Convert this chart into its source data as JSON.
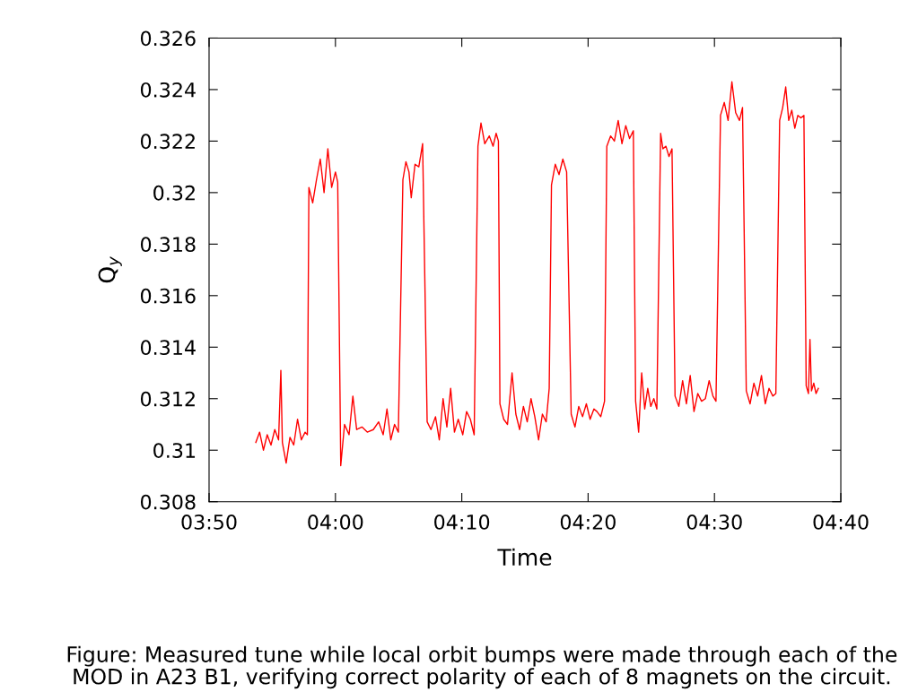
{
  "chart_data": {
    "type": "line",
    "xlabel": "Time",
    "ylabel": "Q$_{y}$",
    "annotations": [
      "Figure: Measured tune while local orbit bumps were made through each of the MOD in A23 B1, verifying correct polarity of each of 8 magnets on the circuit."
    ],
    "x": [
      3.895,
      3.9,
      3.905,
      3.91,
      3.915,
      3.92,
      3.925,
      3.928,
      3.93,
      3.935,
      3.94,
      3.945,
      3.95,
      3.955,
      3.96,
      3.963,
      3.965,
      3.97,
      3.975,
      3.98,
      3.985,
      3.99,
      3.995,
      4.0,
      4.003,
      4.006,
      4.007,
      4.012,
      4.018,
      4.023,
      4.028,
      4.035,
      4.042,
      4.05,
      4.057,
      4.063,
      4.068,
      4.073,
      4.078,
      4.083,
      4.089,
      4.093,
      4.097,
      4.1,
      4.105,
      4.11,
      4.115,
      4.121,
      4.126,
      4.132,
      4.137,
      4.142,
      4.147,
      4.152,
      4.157,
      4.162,
      4.168,
      4.173,
      4.178,
      4.183,
      4.188,
      4.192,
      4.197,
      4.203,
      4.208,
      4.212,
      4.215,
      4.217,
      4.222,
      4.227,
      4.233,
      4.238,
      4.243,
      4.248,
      4.253,
      4.258,
      4.263,
      4.268,
      4.273,
      4.278,
      4.282,
      4.285,
      4.29,
      4.295,
      4.3,
      4.305,
      4.311,
      4.316,
      4.321,
      4.326,
      4.331,
      4.336,
      4.341,
      4.345,
      4.35,
      4.355,
      4.358,
      4.363,
      4.368,
      4.373,
      4.378,
      4.383,
      4.388,
      4.393,
      4.396,
      4.4,
      4.404,
      4.408,
      4.412,
      4.416,
      4.42,
      4.424,
      4.429,
      4.432,
      4.436,
      4.44,
      4.444,
      4.448,
      4.453,
      4.458,
      4.463,
      4.468,
      4.473,
      4.478,
      4.483,
      4.488,
      4.493,
      4.498,
      4.502,
      4.508,
      4.513,
      4.518,
      4.523,
      4.528,
      4.533,
      4.537,
      4.542,
      4.547,
      4.552,
      4.557,
      4.562,
      4.567,
      4.572,
      4.577,
      4.581,
      4.586,
      4.59,
      4.594,
      4.598,
      4.602,
      4.606,
      4.61,
      4.614,
      4.618,
      4.621,
      4.624,
      4.626,
      4.628,
      4.631,
      4.634,
      4.637
    ],
    "series": [
      {
        "color": "#ff0000",
        "values": [
          0.3103,
          0.3107,
          0.31,
          0.3106,
          0.3102,
          0.3108,
          0.3104,
          0.3131,
          0.3103,
          0.3095,
          0.3105,
          0.3102,
          0.3112,
          0.3104,
          0.3107,
          0.3106,
          0.3202,
          0.3196,
          0.3205,
          0.3213,
          0.32,
          0.3217,
          0.3202,
          0.3208,
          0.3204,
          0.3123,
          0.3094,
          0.311,
          0.3106,
          0.3121,
          0.3108,
          0.3109,
          0.3107,
          0.3108,
          0.3111,
          0.3106,
          0.3116,
          0.3104,
          0.311,
          0.3107,
          0.3205,
          0.3212,
          0.3208,
          0.3198,
          0.3211,
          0.321,
          0.3219,
          0.3111,
          0.3108,
          0.3113,
          0.3104,
          0.312,
          0.3109,
          0.3124,
          0.3107,
          0.3112,
          0.3106,
          0.3115,
          0.3112,
          0.3106,
          0.3218,
          0.3227,
          0.3219,
          0.3222,
          0.3218,
          0.3223,
          0.322,
          0.3118,
          0.3112,
          0.311,
          0.313,
          0.3114,
          0.3108,
          0.3117,
          0.3111,
          0.312,
          0.3113,
          0.3104,
          0.3114,
          0.3111,
          0.3124,
          0.3203,
          0.3211,
          0.3207,
          0.3213,
          0.3208,
          0.3114,
          0.3109,
          0.3117,
          0.3113,
          0.3118,
          0.3112,
          0.3116,
          0.3115,
          0.3113,
          0.3119,
          0.3218,
          0.3222,
          0.322,
          0.3228,
          0.3219,
          0.3226,
          0.3221,
          0.3224,
          0.3119,
          0.3107,
          0.313,
          0.3116,
          0.3124,
          0.3117,
          0.312,
          0.3116,
          0.3223,
          0.3217,
          0.3218,
          0.3214,
          0.3217,
          0.3121,
          0.3117,
          0.3127,
          0.3118,
          0.3129,
          0.3115,
          0.3122,
          0.3119,
          0.312,
          0.3127,
          0.3121,
          0.3119,
          0.323,
          0.3235,
          0.3228,
          0.3243,
          0.3231,
          0.3228,
          0.3233,
          0.3123,
          0.3118,
          0.3126,
          0.3121,
          0.3129,
          0.3118,
          0.3124,
          0.3121,
          0.3122,
          0.3228,
          0.3233,
          0.3241,
          0.3228,
          0.3232,
          0.3225,
          0.323,
          0.3229,
          0.323,
          0.3125,
          0.3122,
          0.3143,
          0.3123,
          0.3126,
          0.3122,
          0.3124
        ]
      }
    ],
    "xlim": [
      3.8333,
      4.6667
    ],
    "xticks": [
      {
        "value": 3.8333,
        "label": "03:50"
      },
      {
        "value": 4.0,
        "label": "04:00"
      },
      {
        "value": 4.1667,
        "label": "04:10"
      },
      {
        "value": 4.3333,
        "label": "04:20"
      },
      {
        "value": 4.5,
        "label": "04:30"
      },
      {
        "value": 4.6667,
        "label": "04:40"
      }
    ],
    "ylim": [
      0.308,
      0.326
    ],
    "yticks": [
      0.308,
      0.31,
      0.312,
      0.314,
      0.316,
      0.318,
      0.32,
      0.322,
      0.324,
      0.326
    ],
    "grid": false,
    "marker": "none",
    "line_style": "solid"
  }
}
